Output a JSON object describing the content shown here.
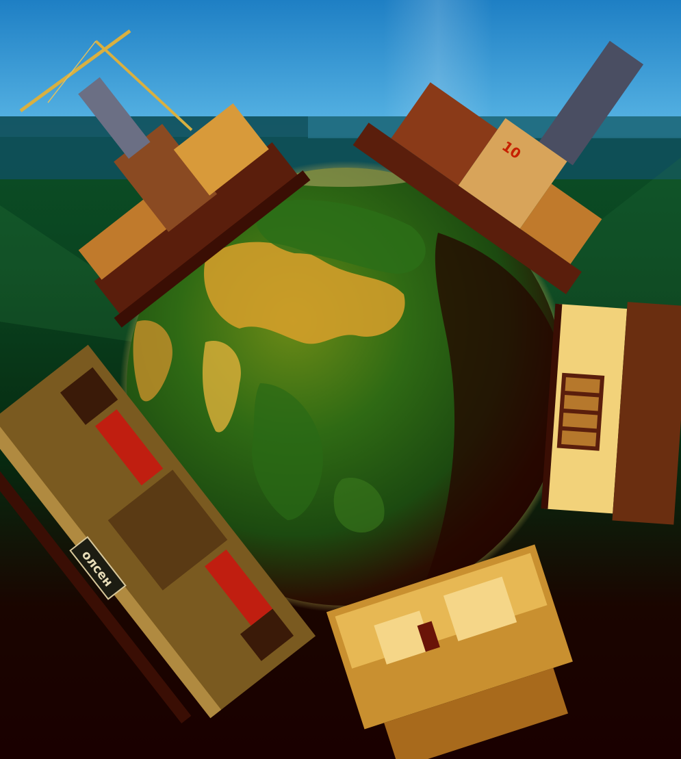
{
  "image": {
    "subject": "globe-with-industrial-buildings",
    "signs": {
      "building_sign": "олсен",
      "tank_number": "10"
    },
    "colors": {
      "sky_top": "#1e7fc4",
      "sky_bottom": "#5bb7e6",
      "band_teal": "#0f4f5a",
      "green_mid": "#0b4a1c",
      "dark_bottom": "#1a0000",
      "earth_land": "#d9a02a",
      "earth_forest": "#235d14",
      "earth_dark": "#2a0800",
      "structure_brown": "#5a1e0c",
      "structure_gold": "#d8a03c",
      "house_cream": "#f2d27a"
    }
  }
}
